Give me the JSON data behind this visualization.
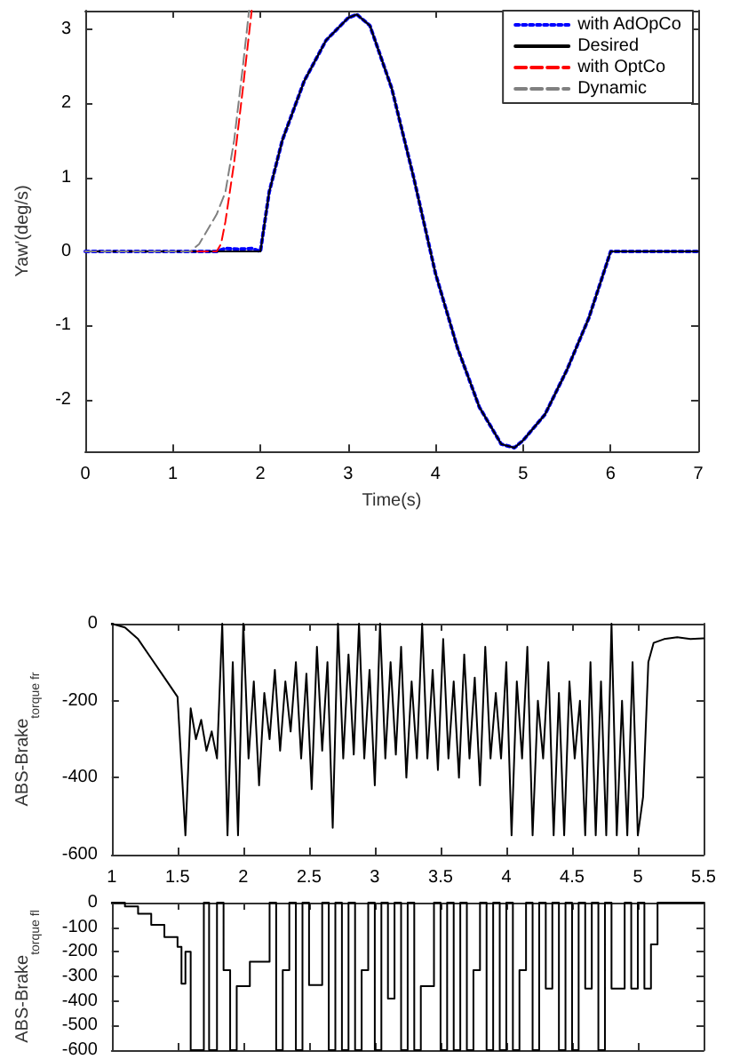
{
  "chart_data": [
    {
      "type": "line",
      "xlabel": "Time(s)",
      "ylabel": "Yaw'(deg/s)",
      "xlim": [
        0,
        7
      ],
      "ylim": [
        -2.7,
        3.25
      ],
      "xticks": [
        0,
        1,
        2,
        3,
        4,
        5,
        6,
        7
      ],
      "yticks": [
        -2,
        -1,
        0,
        1,
        2,
        3
      ],
      "grid": false,
      "legend": "top right",
      "marker": "none",
      "series": [
        {
          "name": "with AdOpCo",
          "color": "#0000ff",
          "line_style": "dotted",
          "x": [
            0,
            1,
            1.5,
            1.6,
            1.75,
            1.9,
            2,
            2.1,
            2.25,
            2.5,
            2.75,
            3,
            3.1,
            3.25,
            3.5,
            3.75,
            4,
            4.25,
            4.5,
            4.75,
            4.9,
            5,
            5.25,
            5.5,
            5.75,
            6,
            7
          ],
          "values": [
            0,
            0,
            0,
            0.04,
            0.03,
            0.04,
            0,
            0.8,
            1.5,
            2.3,
            2.85,
            3.15,
            3.2,
            3.05,
            2.2,
            1,
            -0.3,
            -1.3,
            -2.1,
            -2.6,
            -2.65,
            -2.55,
            -2.2,
            -1.6,
            -0.9,
            0,
            0
          ]
        },
        {
          "name": "Desired",
          "color": "#000000",
          "line_style": "solid",
          "x": [
            0,
            2,
            2.1,
            2.25,
            2.5,
            2.75,
            3,
            3.1,
            3.25,
            3.5,
            3.75,
            4,
            4.25,
            4.5,
            4.75,
            4.9,
            5,
            5.25,
            5.5,
            5.75,
            6,
            7
          ],
          "values": [
            0,
            0,
            0.8,
            1.5,
            2.3,
            2.85,
            3.15,
            3.2,
            3.05,
            2.2,
            1,
            -0.3,
            -1.3,
            -2.1,
            -2.6,
            -2.65,
            -2.55,
            -2.2,
            -1.6,
            -0.9,
            0,
            0
          ]
        },
        {
          "name": "with OptCo",
          "color": "#ff0000",
          "line_style": "dashed",
          "x": [
            0,
            1.5,
            1.55,
            1.6,
            1.7,
            1.8,
            1.9
          ],
          "values": [
            0,
            0,
            0.1,
            0.4,
            1.2,
            2.2,
            3.25
          ]
        },
        {
          "name": "Dynamic",
          "color": "#808080",
          "line_style": "dashed",
          "x": [
            0,
            1.2,
            1.3,
            1.5,
            1.6,
            1.7,
            1.8,
            1.87
          ],
          "values": [
            0,
            0,
            0.1,
            0.5,
            0.8,
            1.5,
            2.5,
            3.25
          ]
        }
      ]
    },
    {
      "type": "line",
      "ylabel": "ABS-Brake$_{torque fr}$",
      "xlim": [
        1,
        5.5
      ],
      "ylim": [
        -600,
        0
      ],
      "xticks": [
        1,
        1.5,
        2,
        2.5,
        3,
        3.5,
        4,
        4.5,
        5,
        5.5
      ],
      "yticks": [
        -600,
        -400,
        -200,
        0
      ],
      "grid": false,
      "marker": "none",
      "series": [
        {
          "color": "#000000",
          "x": [
            1,
            1.1,
            1.2,
            1.3,
            1.4,
            1.5,
            1.56,
            1.6,
            1.64,
            1.68,
            1.72,
            1.76,
            1.8,
            1.84,
            1.88,
            1.92,
            1.96,
            2,
            2.04,
            2.08,
            2.12,
            2.16,
            2.2,
            2.24,
            2.28,
            2.32,
            2.36,
            2.4,
            2.44,
            2.48,
            2.52,
            2.56,
            2.6,
            2.64,
            2.68,
            2.72,
            2.76,
            2.8,
            2.84,
            2.88,
            2.92,
            2.96,
            3,
            3.04,
            3.08,
            3.12,
            3.16,
            3.2,
            3.24,
            3.28,
            3.32,
            3.36,
            3.4,
            3.44,
            3.48,
            3.52,
            3.56,
            3.6,
            3.64,
            3.68,
            3.72,
            3.76,
            3.8,
            3.84,
            3.88,
            3.92,
            3.96,
            4,
            4.04,
            4.08,
            4.12,
            4.16,
            4.2,
            4.24,
            4.28,
            4.32,
            4.36,
            4.4,
            4.44,
            4.48,
            4.52,
            4.56,
            4.6,
            4.64,
            4.68,
            4.72,
            4.76,
            4.8,
            4.84,
            4.88,
            4.92,
            4.96,
            5,
            5.04,
            5.08,
            5.12,
            5.2,
            5.3,
            5.4,
            5.5
          ],
          "values": [
            0,
            -10,
            -40,
            -90,
            -140,
            -190,
            -550,
            -220,
            -300,
            -250,
            -330,
            -280,
            -350,
            0,
            -550,
            -100,
            -550,
            0,
            -350,
            -150,
            -420,
            -180,
            -300,
            -120,
            -330,
            -150,
            -280,
            -100,
            -350,
            -130,
            -430,
            -60,
            -330,
            -100,
            -530,
            0,
            -350,
            -80,
            -340,
            0,
            -350,
            -120,
            -420,
            0,
            -350,
            -100,
            -340,
            -60,
            -400,
            -150,
            -350,
            0,
            -350,
            -120,
            -380,
            -40,
            -350,
            -150,
            -400,
            -80,
            -350,
            -140,
            -420,
            -60,
            -350,
            -180,
            -350,
            -100,
            -550,
            -150,
            -350,
            -60,
            -550,
            -200,
            -350,
            -100,
            -550,
            -180,
            -550,
            -150,
            -350,
            -200,
            -550,
            -100,
            -550,
            -150,
            -550,
            0,
            -550,
            -200,
            -550,
            -100,
            -550,
            -450,
            -100,
            -50,
            -40,
            -35,
            -40,
            -38
          ]
        }
      ]
    },
    {
      "type": "step",
      "ylabel": "ABS-Brake$_{torque fl}$",
      "xlim": [
        1,
        5.5
      ],
      "ylim": [
        -600,
        0
      ],
      "yticks": [
        -600,
        -500,
        -400,
        -300,
        -200,
        -100,
        0
      ],
      "xticks": [
        {
          "value": 1,
          "label": null
        },
        {
          "value": 1.5,
          "label": null
        },
        {
          "value": 2,
          "label": null
        },
        {
          "value": 2.5,
          "label": null
        },
        {
          "value": 3,
          "label": null
        },
        {
          "value": 3.5,
          "label": null
        },
        {
          "value": 4,
          "label": null
        },
        {
          "value": 4.5,
          "label": null
        },
        {
          "value": 5,
          "label": null
        },
        {
          "value": 5.5,
          "label": null
        }
      ],
      "tick_labels": "y",
      "grid": false,
      "marker": "none",
      "series": [
        {
          "color": "#000000",
          "x": [
            1,
            1.1,
            1.2,
            1.3,
            1.4,
            1.5,
            1.53,
            1.56,
            1.6,
            1.7,
            1.74,
            1.8,
            1.85,
            1.9,
            1.95,
            2.05,
            2.2,
            2.25,
            2.3,
            2.35,
            2.4,
            2.45,
            2.5,
            2.6,
            2.65,
            2.7,
            2.75,
            2.8,
            2.85,
            2.9,
            2.95,
            3,
            3.05,
            3.1,
            3.15,
            3.2,
            3.25,
            3.3,
            3.35,
            3.45,
            3.5,
            3.55,
            3.6,
            3.65,
            3.7,
            3.75,
            3.8,
            3.85,
            3.9,
            3.95,
            4,
            4.05,
            4.1,
            4.15,
            4.2,
            4.25,
            4.3,
            4.35,
            4.4,
            4.45,
            4.5,
            4.55,
            4.6,
            4.65,
            4.7,
            4.75,
            4.8,
            4.9,
            4.95,
            5,
            5.05,
            5.1,
            5.15,
            5.5
          ],
          "values": [
            0,
            -15,
            -45,
            -90,
            -140,
            -180,
            -330,
            -200,
            -600,
            0,
            -600,
            0,
            -275,
            -600,
            -340,
            -240,
            0,
            -600,
            -275,
            0,
            -600,
            0,
            -335,
            0,
            -600,
            0,
            -600,
            0,
            -600,
            -275,
            0,
            -600,
            0,
            -390,
            0,
            -600,
            0,
            -600,
            -340,
            0,
            -600,
            0,
            -600,
            0,
            -600,
            -275,
            0,
            -600,
            0,
            -600,
            0,
            -600,
            -275,
            0,
            -600,
            0,
            -350,
            0,
            -600,
            0,
            -600,
            0,
            -350,
            0,
            -600,
            0,
            -350,
            0,
            -350,
            0,
            -350,
            -170,
            0,
            0
          ]
        }
      ]
    }
  ]
}
